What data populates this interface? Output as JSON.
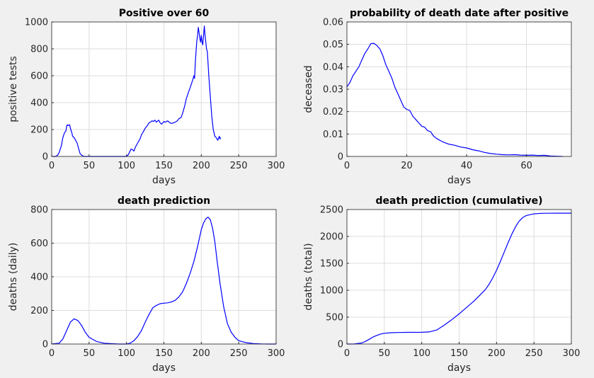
{
  "figure": {
    "background": "#f0f0f0",
    "axes_color": "#262626",
    "grid_color": "#dcdcdc",
    "line_color": "#0000ff"
  },
  "chart_data": [
    {
      "type": "line",
      "title": "Positive over 60",
      "xlabel": "days",
      "ylabel": "positive tests",
      "xlim": [
        0,
        300
      ],
      "ylim": [
        0,
        1000
      ],
      "xticks": [
        0,
        50,
        100,
        150,
        200,
        250,
        300
      ],
      "yticks": [
        0,
        200,
        400,
        600,
        800,
        1000
      ],
      "grid": true,
      "series": [
        {
          "x": [
            0,
            5,
            8,
            10,
            13,
            15,
            17,
            19,
            20,
            21,
            22,
            24,
            25,
            27,
            28,
            30,
            32,
            34,
            36,
            38,
            40,
            43,
            45,
            48,
            50,
            55,
            60,
            70,
            80,
            90,
            100,
            102,
            104,
            106,
            108,
            110,
            112,
            115,
            118,
            120,
            123,
            125,
            128,
            130,
            132,
            134,
            136,
            138,
            140,
            143,
            145,
            147,
            150,
            152,
            155,
            158,
            160,
            163,
            165,
            168,
            170,
            173,
            175,
            178,
            180,
            183,
            185,
            188,
            190,
            191,
            192,
            193,
            194,
            195,
            196,
            197,
            198,
            199,
            200,
            201,
            202,
            203,
            204,
            205,
            206,
            207,
            208,
            209,
            210,
            212,
            214,
            216,
            218,
            220,
            222,
            224,
            225,
            226
          ],
          "y": [
            0,
            0,
            10,
            30,
            80,
            140,
            175,
            190,
            225,
            235,
            230,
            235,
            210,
            175,
            150,
            140,
            120,
            100,
            60,
            20,
            10,
            0,
            0,
            0,
            0,
            0,
            0,
            0,
            0,
            0,
            0,
            10,
            30,
            55,
            50,
            40,
            70,
            100,
            130,
            160,
            190,
            210,
            230,
            250,
            255,
            265,
            260,
            270,
            255,
            270,
            250,
            240,
            260,
            255,
            265,
            250,
            245,
            250,
            255,
            265,
            280,
            290,
            320,
            380,
            430,
            480,
            510,
            560,
            600,
            580,
            700,
            780,
            860,
            900,
            960,
            920,
            880,
            850,
            900,
            850,
            830,
            900,
            970,
            900,
            850,
            800,
            780,
            700,
            600,
            450,
            300,
            200,
            150,
            140,
            120,
            150,
            130,
            140
          ]
        }
      ]
    },
    {
      "type": "line",
      "title": "probability of death date after positive",
      "xlabel": "days",
      "ylabel": "deceased",
      "xlim": [
        0,
        75
      ],
      "ylim": [
        0,
        0.06
      ],
      "xticks": [
        0,
        20,
        40,
        60
      ],
      "yticks": [
        0,
        0.01,
        0.02,
        0.03,
        0.04,
        0.05,
        0.06
      ],
      "grid": true,
      "series": [
        {
          "x": [
            0,
            1,
            2,
            3,
            4,
            5,
            6,
            7,
            8,
            9,
            10,
            11,
            12,
            13,
            14,
            15,
            16,
            17,
            18,
            19,
            20,
            21,
            22,
            23,
            24,
            25,
            26,
            27,
            28,
            29,
            30,
            32,
            34,
            36,
            38,
            40,
            42,
            44,
            46,
            48,
            50,
            52,
            54,
            56,
            58,
            60,
            62,
            64,
            66,
            68,
            70,
            72
          ],
          "y": [
            0.031,
            0.033,
            0.036,
            0.038,
            0.04,
            0.043,
            0.046,
            0.048,
            0.0503,
            0.0505,
            0.0495,
            0.048,
            0.045,
            0.041,
            0.038,
            0.035,
            0.031,
            0.028,
            0.025,
            0.022,
            0.021,
            0.0205,
            0.018,
            0.0165,
            0.015,
            0.0135,
            0.013,
            0.0115,
            0.011,
            0.009,
            0.008,
            0.0065,
            0.0055,
            0.005,
            0.0042,
            0.0038,
            0.003,
            0.0025,
            0.0018,
            0.0013,
            0.001,
            0.0008,
            0.0007,
            0.0008,
            0.0006,
            0.0005,
            0.0006,
            0.0004,
            0.0005,
            0.0002,
            0.0001,
            0.0
          ]
        }
      ]
    },
    {
      "type": "line",
      "title": "death prediction",
      "xlabel": "days",
      "ylabel": "deaths (daily)",
      "xlim": [
        0,
        300
      ],
      "ylim": [
        0,
        800
      ],
      "xticks": [
        0,
        50,
        100,
        150,
        200,
        250,
        300
      ],
      "yticks": [
        0,
        200,
        400,
        600,
        800
      ],
      "grid": true,
      "series": [
        {
          "x": [
            0,
            10,
            15,
            20,
            25,
            30,
            35,
            40,
            45,
            50,
            60,
            70,
            80,
            90,
            100,
            105,
            110,
            115,
            120,
            125,
            130,
            135,
            140,
            145,
            150,
            155,
            160,
            165,
            170,
            175,
            180,
            185,
            190,
            195,
            200,
            203,
            206,
            209,
            212,
            215,
            218,
            221,
            225,
            230,
            235,
            240,
            245,
            250,
            260,
            270,
            280,
            290,
            300
          ],
          "y": [
            0,
            5,
            30,
            80,
            130,
            150,
            140,
            110,
            70,
            40,
            15,
            5,
            2,
            0,
            0,
            5,
            20,
            45,
            80,
            130,
            175,
            215,
            230,
            240,
            243,
            245,
            250,
            260,
            280,
            310,
            360,
            420,
            490,
            580,
            680,
            720,
            745,
            755,
            740,
            690,
            610,
            500,
            360,
            220,
            120,
            70,
            40,
            20,
            8,
            3,
            1,
            0,
            0
          ]
        }
      ]
    },
    {
      "type": "line",
      "title": "death prediction (cumulative)",
      "xlabel": "days",
      "ylabel": "deaths (total)",
      "xlim": [
        0,
        300
      ],
      "ylim": [
        0,
        2500
      ],
      "xticks": [
        0,
        50,
        100,
        150,
        200,
        250,
        300
      ],
      "yticks": [
        0,
        500,
        1000,
        1500,
        2000,
        2500
      ],
      "grid": true,
      "series": [
        {
          "x": [
            0,
            10,
            20,
            25,
            30,
            35,
            40,
            45,
            50,
            60,
            70,
            80,
            90,
            100,
            110,
            120,
            130,
            140,
            150,
            160,
            170,
            180,
            185,
            190,
            195,
            200,
            205,
            210,
            215,
            220,
            225,
            230,
            235,
            240,
            250,
            260,
            270,
            280,
            290,
            300
          ],
          "y": [
            0,
            1,
            20,
            50,
            90,
            130,
            160,
            185,
            200,
            210,
            215,
            217,
            217,
            218,
            225,
            260,
            350,
            450,
            560,
            680,
            800,
            940,
            1010,
            1110,
            1230,
            1370,
            1530,
            1700,
            1870,
            2030,
            2170,
            2280,
            2350,
            2390,
            2420,
            2430,
            2432,
            2433,
            2433,
            2433
          ]
        }
      ]
    }
  ]
}
